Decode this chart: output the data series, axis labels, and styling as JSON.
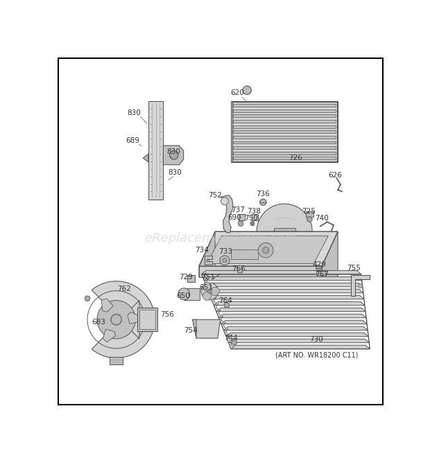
{
  "background_color": "#ffffff",
  "border_color": "#000000",
  "watermark_text": "eReplacementParts.com",
  "art_no_text": "(ART NO. WR18200 C11)",
  "fig_width": 6.2,
  "fig_height": 6.61,
  "dpi": 100,
  "line_color": "#555555",
  "fill_light": "#e8e8e8",
  "fill_mid": "#cccccc",
  "fill_dark": "#aaaaaa"
}
